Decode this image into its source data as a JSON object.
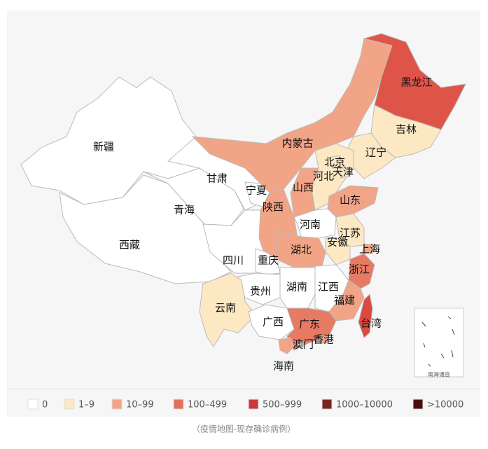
{
  "map": {
    "provinces": [
      {
        "name": "新疆",
        "color": "#ffffff"
      },
      {
        "name": "西藏",
        "color": "#ffffff"
      },
      {
        "name": "青海",
        "color": "#ffffff"
      },
      {
        "name": "甘肃",
        "color": "#ffffff"
      },
      {
        "name": "内蒙古",
        "color": "#f2a486"
      },
      {
        "name": "黑龙江",
        "color": "#df5449"
      },
      {
        "name": "吉林",
        "color": "#fde8c4"
      },
      {
        "name": "辽宁",
        "color": "#fde8c4"
      },
      {
        "name": "河北",
        "color": "#fde8c4"
      },
      {
        "name": "北京",
        "color": "#fde8c4"
      },
      {
        "name": "天津",
        "color": "#fde8c4"
      },
      {
        "name": "山西",
        "color": "#f2a486"
      },
      {
        "name": "宁夏",
        "color": "#ffffff"
      },
      {
        "name": "陕西",
        "color": "#f2a486"
      },
      {
        "name": "山东",
        "color": "#f2a486"
      },
      {
        "name": "河南",
        "color": "#ffffff"
      },
      {
        "name": "江苏",
        "color": "#fde8c4"
      },
      {
        "name": "安徽",
        "color": "#fde8c4"
      },
      {
        "name": "上海",
        "color": "#f2a486"
      },
      {
        "name": "湖北",
        "color": "#f2a486"
      },
      {
        "name": "四川",
        "color": "#ffffff"
      },
      {
        "name": "重庆",
        "color": "#ffffff"
      },
      {
        "name": "浙江",
        "color": "#e67a63"
      },
      {
        "name": "贵州",
        "color": "#ffffff"
      },
      {
        "name": "湖南",
        "color": "#ffffff"
      },
      {
        "name": "江西",
        "color": "#ffffff"
      },
      {
        "name": "福建",
        "color": "#f2a486"
      },
      {
        "name": "云南",
        "color": "#fde8c4"
      },
      {
        "name": "广西",
        "color": "#ffffff"
      },
      {
        "name": "广东",
        "color": "#e67a63"
      },
      {
        "name": "香港",
        "color": "#f2a486"
      },
      {
        "name": "澳门",
        "color": "#ffffff"
      },
      {
        "name": "海南",
        "color": "#f2a486"
      },
      {
        "name": "台湾",
        "color": "#d94a3f"
      }
    ],
    "inset_label": "南海诸岛"
  },
  "legend": [
    {
      "label": "0",
      "color": "#ffffff"
    },
    {
      "label": "1–9",
      "color": "#fde8c4"
    },
    {
      "label": "10–99",
      "color": "#f2a486"
    },
    {
      "label": "100–499",
      "color": "#e0705d"
    },
    {
      "label": "500–999",
      "color": "#c9393a"
    },
    {
      "label": "1000–10000",
      "color": "#7b2323"
    },
    {
      "label": ">10000",
      "color": "#4a0d0d"
    }
  ],
  "caption": "（疫情地图-现存确诊病例）"
}
